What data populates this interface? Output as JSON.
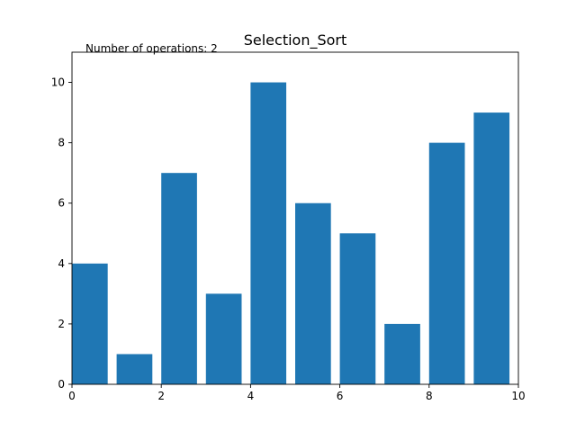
{
  "chart_data": {
    "type": "bar",
    "title": "Selection_Sort",
    "annotation": "Number of operations: 2",
    "xlabel": "",
    "ylabel": "",
    "x": [
      0,
      1,
      2,
      3,
      4,
      5,
      6,
      7,
      8,
      9
    ],
    "values": [
      4,
      1,
      7,
      3,
      10,
      6,
      5,
      2,
      8,
      9
    ],
    "bar_width": 0.8,
    "bar_align": "left-edge",
    "xlim": [
      0,
      10
    ],
    "ylim": [
      0,
      11
    ],
    "xticks": [
      0,
      2,
      4,
      6,
      8,
      10
    ],
    "yticks": [
      0,
      2,
      4,
      6,
      8,
      10
    ],
    "grid": false,
    "legend": "none",
    "bar_color": "#1f77b4"
  }
}
